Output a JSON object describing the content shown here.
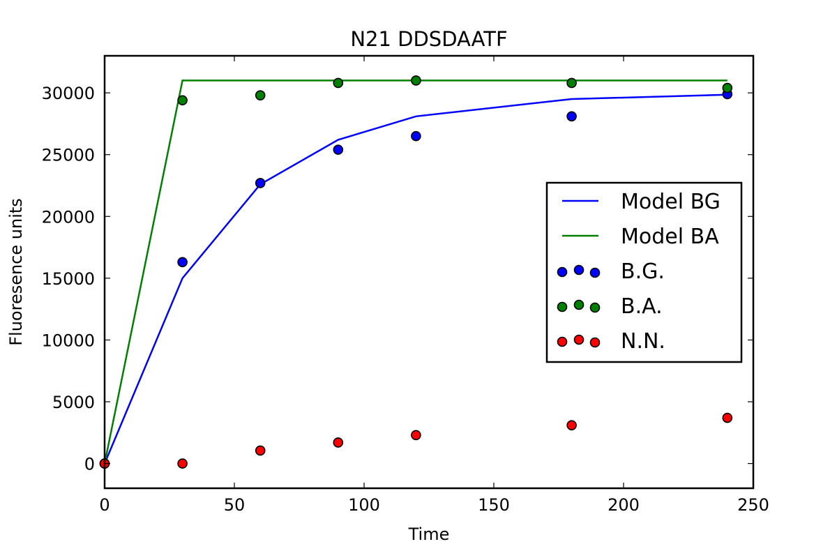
{
  "chart_data": {
    "type": "line",
    "title": "N21 DDSDAATF",
    "xlabel": "Time",
    "ylabel": "Fluoresence units",
    "xlim": [
      0,
      250
    ],
    "ylim": [
      -2000,
      33000
    ],
    "xticks": [
      0,
      50,
      100,
      150,
      200,
      250
    ],
    "yticks": [
      0,
      5000,
      10000,
      15000,
      20000,
      25000,
      30000
    ],
    "grid": false,
    "legend_position": "center-right",
    "series": [
      {
        "name": "Model BG",
        "kind": "line",
        "color": "#0000ff",
        "x": [
          0,
          30,
          60,
          90,
          120,
          180,
          240
        ],
        "y": [
          0,
          15000,
          22600,
          26200,
          28100,
          29500,
          29850
        ]
      },
      {
        "name": "Model BA",
        "kind": "line",
        "color": "#008000",
        "x": [
          0,
          30,
          60,
          90,
          120,
          180,
          240
        ],
        "y": [
          0,
          31000,
          31000,
          31000,
          31000,
          31000,
          31000
        ]
      },
      {
        "name": "B.G.",
        "kind": "scatter",
        "color": "#0000ff",
        "x": [
          0,
          30,
          60,
          90,
          120,
          180,
          240
        ],
        "y": [
          0,
          16300,
          22700,
          25400,
          26500,
          28100,
          29900
        ]
      },
      {
        "name": "B.A.",
        "kind": "scatter",
        "color": "#008000",
        "x": [
          0,
          30,
          60,
          90,
          120,
          180,
          240
        ],
        "y": [
          0,
          29400,
          29800,
          30800,
          31000,
          30800,
          30400
        ]
      },
      {
        "name": "N.N.",
        "kind": "scatter",
        "color": "#ff0000",
        "x": [
          0,
          30,
          60,
          90,
          120,
          180,
          240
        ],
        "y": [
          0,
          0,
          1050,
          1700,
          2300,
          3100,
          3700
        ]
      }
    ]
  }
}
